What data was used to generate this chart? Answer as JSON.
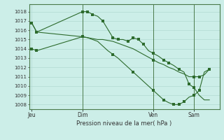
{
  "background_color": "#cceee8",
  "grid_color": "#aad4cc",
  "line_color": "#2d6b2d",
  "title": "Pression niveau de la mer( hPa )",
  "xlabel_ticks": [
    "Jeu",
    "Dim",
    "Ven",
    "Sam"
  ],
  "xlabel_tick_positions": [
    0,
    10,
    24,
    32
  ],
  "vline_positions": [
    10,
    24,
    32
  ],
  "ylim": [
    1007.5,
    1018.8
  ],
  "yticks": [
    1008,
    1009,
    1010,
    1011,
    1012,
    1013,
    1014,
    1015,
    1016,
    1017,
    1018
  ],
  "xlim": [
    -0.5,
    37
  ],
  "series1_x": [
    0,
    1,
    10,
    11,
    12,
    13,
    14,
    16,
    17,
    18,
    19,
    20,
    21,
    22,
    23,
    24,
    25,
    26,
    27,
    28,
    29,
    30,
    31,
    32,
    33,
    34,
    35
  ],
  "series1_y": [
    1016.8,
    1015.8,
    1018.0,
    1018.0,
    1017.7,
    1017.5,
    1017.0,
    1015.2,
    1015.0,
    1015.0,
    1014.8,
    1015.2,
    1015.0,
    1014.5,
    1013.8,
    1013.5,
    1013.2,
    1012.8,
    1012.5,
    1012.2,
    1011.8,
    1011.5,
    1010.2,
    1009.8,
    1009.0,
    1008.5,
    1008.5
  ],
  "series1_markers": [
    0,
    1,
    10,
    11,
    12,
    14,
    16,
    17,
    19,
    20,
    21,
    22,
    24,
    26,
    27,
    29,
    31,
    32
  ],
  "series2_x": [
    0,
    1,
    10,
    11,
    12,
    13,
    14,
    15,
    16,
    17,
    18,
    19,
    20,
    21,
    22,
    23,
    24,
    25,
    26,
    27,
    28,
    29,
    30,
    31,
    32,
    33,
    34,
    35
  ],
  "series2_y": [
    1016.8,
    1015.8,
    1015.3,
    1015.2,
    1015.1,
    1015.0,
    1015.0,
    1014.9,
    1014.8,
    1014.6,
    1014.4,
    1014.2,
    1014.0,
    1013.7,
    1013.4,
    1013.1,
    1012.8,
    1012.5,
    1012.3,
    1012.0,
    1011.8,
    1011.5,
    1011.3,
    1011.0,
    1011.0,
    1011.0,
    1011.2,
    1011.8
  ],
  "series2_markers": [
    0,
    1,
    10,
    24,
    32,
    33,
    35
  ],
  "series3_x": [
    0,
    1,
    10,
    11,
    12,
    13,
    14,
    15,
    16,
    17,
    18,
    19,
    20,
    21,
    22,
    23,
    24,
    25,
    26,
    27,
    28,
    29,
    30,
    31,
    32,
    33,
    34,
    35
  ],
  "series3_y": [
    1014.0,
    1013.8,
    1015.3,
    1015.2,
    1015.0,
    1014.8,
    1014.3,
    1013.8,
    1013.4,
    1013.0,
    1012.5,
    1012.0,
    1011.5,
    1011.0,
    1010.5,
    1010.0,
    1009.5,
    1009.0,
    1008.5,
    1008.2,
    1008.0,
    1008.0,
    1008.3,
    1008.8,
    1009.0,
    1009.5,
    1011.5,
    1011.8
  ],
  "series3_markers": [
    0,
    1,
    10,
    16,
    20,
    24,
    26,
    28,
    29,
    30,
    32,
    33,
    35
  ]
}
